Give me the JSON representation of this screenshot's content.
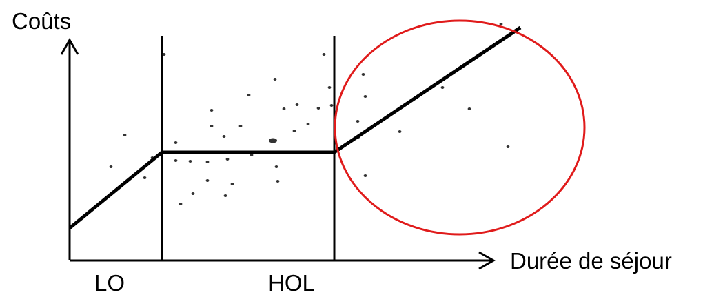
{
  "labels": {
    "y_axis": "Coûts",
    "x_axis": "Durée de séjour",
    "low_threshold": "LO",
    "high_threshold": "HOL"
  },
  "colors": {
    "axes": "#000000",
    "cost_curve": "#000000",
    "scatter_points": "#333333",
    "highlight_circle": "#e01b1b",
    "background": "#ffffff"
  },
  "icons": {
    "x_axis_arrow": "arrow-right-icon",
    "y_axis_arrow": "arrow-up-icon"
  }
}
